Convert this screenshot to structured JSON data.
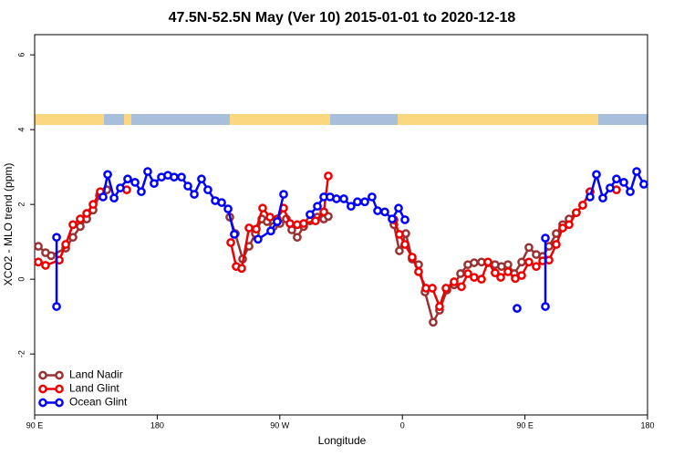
{
  "chart_data": {
    "type": "line",
    "title": "47.5N-52.5N May (Ver 10)   2015-01-01 to 2020-12-18",
    "x_label": "Longitude",
    "y_label": "XCO2 - MLO trend (ppm)",
    "xlim": [
      90,
      540
    ],
    "ylim": [
      -3.63,
      6.54
    ],
    "xticks": [
      {
        "value": 90,
        "label": "90 E"
      },
      180,
      {
        "value": 270,
        "label": "90 W"
      },
      {
        "value": 360,
        "label": "0"
      },
      {
        "value": 450,
        "label": "90 E"
      },
      {
        "value": 540,
        "label": "180"
      }
    ],
    "yticks": [
      -2,
      0,
      2,
      4,
      6
    ],
    "legend": "bottom-left",
    "series": [
      {
        "name": "Land Nadir",
        "color": "#993333",
        "x": [
          92.7,
          98.0,
          102.1,
          112.8,
          118.1,
          123.5,
          128.2,
          132.9,
          137.6,
          143.0,
          null,
          233.3,
          237.3,
          242.7,
          247.4,
          252.1,
          256.8,
          260.7,
          265.4,
          270.1,
          274.8,
          278.8,
          282.8,
          287.5,
          292.2,
          297.6,
          302.3,
          305.6,
          null,
          353.8,
          357.8,
          362.5,
          367.2,
          371.9,
          376.6,
          382.6,
          387.3,
          392.7,
          398.0,
          402.7,
          408.1,
          412.7,
          418.1,
          422.8,
          428.1,
          432.8,
          437.5,
          442.2,
          447.6,
          452.9,
          458.3,
          463.0,
          467.7,
          473.0,
          477.7,
          482.4,
          487.7,
          492.4,
          497.8
        ],
        "values": [
          0.88,
          0.71,
          0.63,
          0.83,
          1.12,
          1.41,
          1.61,
          1.85,
          2.24,
          2.39,
          null,
          1.66,
          1.22,
          0.54,
          0.88,
          1.22,
          1.61,
          1.54,
          1.41,
          1.49,
          1.61,
          1.32,
          1.12,
          1.41,
          1.56,
          1.66,
          1.61,
          1.68,
          null,
          1.46,
          0.76,
          1.22,
          0.54,
          0.39,
          -0.34,
          -1.15,
          -0.83,
          -0.29,
          -0.15,
          0.15,
          0.39,
          0.44,
          0.46,
          0.44,
          0.39,
          0.34,
          0.39,
          0.15,
          0.46,
          0.85,
          0.66,
          0.61,
          0.88,
          1.22,
          1.46,
          1.61,
          1.78,
          1.98,
          2.34
        ]
      },
      {
        "name": "Land Glint",
        "color": "#ee0000",
        "x": [
          92.7,
          98.0,
          108.1,
          112.8,
          118.1,
          123.5,
          128.2,
          132.9,
          138.2,
          null,
          157.6,
          null,
          234.0,
          238.0,
          242.0,
          247.4,
          252.7,
          257.4,
          262.8,
          268.1,
          272.8,
          277.5,
          282.8,
          287.5,
          296.2,
          302.3,
          305.6,
          null,
          353.8,
          357.8,
          361.9,
          367.2,
          371.9,
          377.3,
          382.0,
          387.3,
          392.0,
          398.0,
          403.4,
          408.1,
          412.7,
          418.1,
          422.8,
          428.1,
          432.2,
          437.5,
          442.9,
          447.6,
          452.9,
          458.3,
          463.0,
          467.7,
          473.0,
          477.7,
          482.4,
          487.7,
          492.4,
          497.8,
          null,
          517.2
        ],
        "values": [
          0.46,
          0.37,
          0.51,
          0.93,
          1.46,
          1.61,
          1.76,
          2.0,
          2.34,
          null,
          2.39,
          null,
          0.98,
          0.34,
          0.29,
          1.37,
          1.34,
          1.9,
          1.66,
          1.61,
          1.9,
          1.49,
          1.46,
          1.49,
          1.56,
          1.8,
          2.76,
          null,
          1.59,
          1.2,
          0.93,
          0.59,
          0.2,
          -0.24,
          -0.24,
          -0.73,
          -0.24,
          -0.07,
          -0.2,
          0.15,
          0.05,
          0.0,
          0.46,
          0.17,
          0.05,
          0.2,
          0.02,
          0.1,
          0.46,
          0.34,
          0.49,
          0.51,
          0.93,
          1.37,
          1.46,
          1.78,
          1.98,
          2.34,
          null,
          2.39
        ]
      },
      {
        "name": "Ocean Glint",
        "color": "#0000ff",
        "x": [
          106.1,
          106.1,
          null,
          140.2,
          143.6,
          148.3,
          152.9,
          158.3,
          163.7,
          168.3,
          173.0,
          177.7,
          183.1,
          187.8,
          192.4,
          197.8,
          202.5,
          207.2,
          212.5,
          217.2,
          222.6,
          227.3,
          232.0,
          236.6,
          null,
          254.0,
          263.4,
          268.1,
          272.8,
          null,
          292.2,
          297.6,
          302.3,
          306.9,
          311.6,
          317.0,
          322.3,
          327.0,
          332.4,
          337.7,
          341.8,
          347.1,
          352.5,
          357.2,
          361.9,
          null,
          444.2,
          null,
          465.0,
          465.0,
          null,
          497.8,
          502.5,
          507.2,
          512.5,
          517.2,
          522.6,
          527.3,
          532.0,
          537.3
        ],
        "values": [
          -0.73,
          1.12,
          null,
          2.2,
          2.8,
          2.17,
          2.44,
          2.68,
          2.59,
          2.34,
          2.88,
          2.56,
          2.73,
          2.78,
          2.73,
          2.73,
          2.49,
          2.27,
          2.68,
          2.39,
          2.1,
          2.05,
          1.88,
          1.2,
          null,
          1.07,
          1.29,
          1.54,
          2.27,
          null,
          1.73,
          1.95,
          2.2,
          2.2,
          2.15,
          2.15,
          1.95,
          2.07,
          2.07,
          2.2,
          1.83,
          1.8,
          1.61,
          1.9,
          1.59,
          null,
          -0.78,
          null,
          1.1,
          -0.73,
          null,
          2.2,
          2.8,
          2.17,
          2.44,
          2.68,
          2.59,
          2.34,
          2.88,
          2.54
        ]
      }
    ]
  }
}
